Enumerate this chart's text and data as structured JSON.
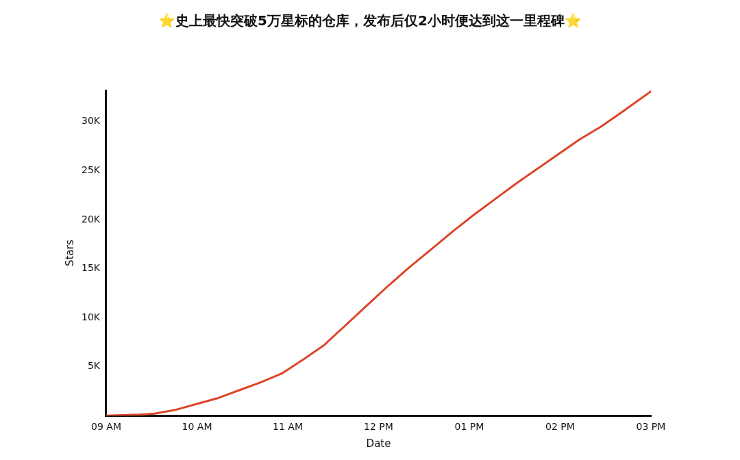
{
  "chart_data": {
    "type": "line",
    "title": "⭐史上最快突破5万星标的仓库，发布后仅2小时便达到这一里程碑⭐",
    "xlabel": "Date",
    "ylabel": "Stars",
    "xlim": [
      "--03-31T09:00",
      "--03-31T15:00"
    ],
    "ylim": [
      0,
      33200
    ],
    "xticks": [
      {
        "value": "--03-31T09:00",
        "label": "09 AM"
      },
      {
        "value": "--03-31T10:00",
        "label": "10 AM"
      },
      {
        "value": "--03-31T11:00",
        "label": "11 AM"
      },
      {
        "value": "--03-31T12:00",
        "label": "12 PM"
      },
      {
        "value": "--03-31T13:00",
        "label": "01 PM"
      },
      {
        "value": "--03-31T14:00",
        "label": "02 PM"
      },
      {
        "value": "--03-31T15:00",
        "label": "03 PM"
      }
    ],
    "yticks": [
      {
        "value": 5000,
        "label": "5K"
      },
      {
        "value": 10000,
        "label": "10K"
      },
      {
        "value": 15000,
        "label": "15K"
      },
      {
        "value": 20000,
        "label": "20K"
      },
      {
        "value": 25000,
        "label": "25K"
      },
      {
        "value": 30000,
        "label": "30K"
      }
    ],
    "grid": false,
    "legend": false,
    "marker": "none",
    "line_style": "solid",
    "series": [
      {
        "color": "#dd4528",
        "x": [
          "--03-31T09:00",
          "--03-31T09:22",
          "--03-31T09:32",
          "--03-31T09:46",
          "--03-31T10:00",
          "--03-31T10:14",
          "--03-31T10:28",
          "--03-31T10:42",
          "--03-31T10:56",
          "--03-31T11:10",
          "--03-31T11:24",
          "--03-31T11:38",
          "--03-31T11:52",
          "--03-31T12:06",
          "--03-31T12:20",
          "--03-31T12:35",
          "--03-31T12:49",
          "--03-31T13:03",
          "--03-31T13:17",
          "--03-31T13:31",
          "--03-31T13:45",
          "--03-31T13:59",
          "--03-31T14:13",
          "--03-31T14:27",
          "--03-31T14:41",
          "--03-31T15:00"
        ],
        "values": [
          0,
          100,
          200,
          600,
          1200,
          1800,
          2600,
          3400,
          4300,
          5700,
          7200,
          9200,
          11200,
          13200,
          15100,
          17000,
          18800,
          20500,
          22100,
          23700,
          25200,
          26700,
          28200,
          29500,
          31000,
          33100
        ]
      }
    ]
  }
}
